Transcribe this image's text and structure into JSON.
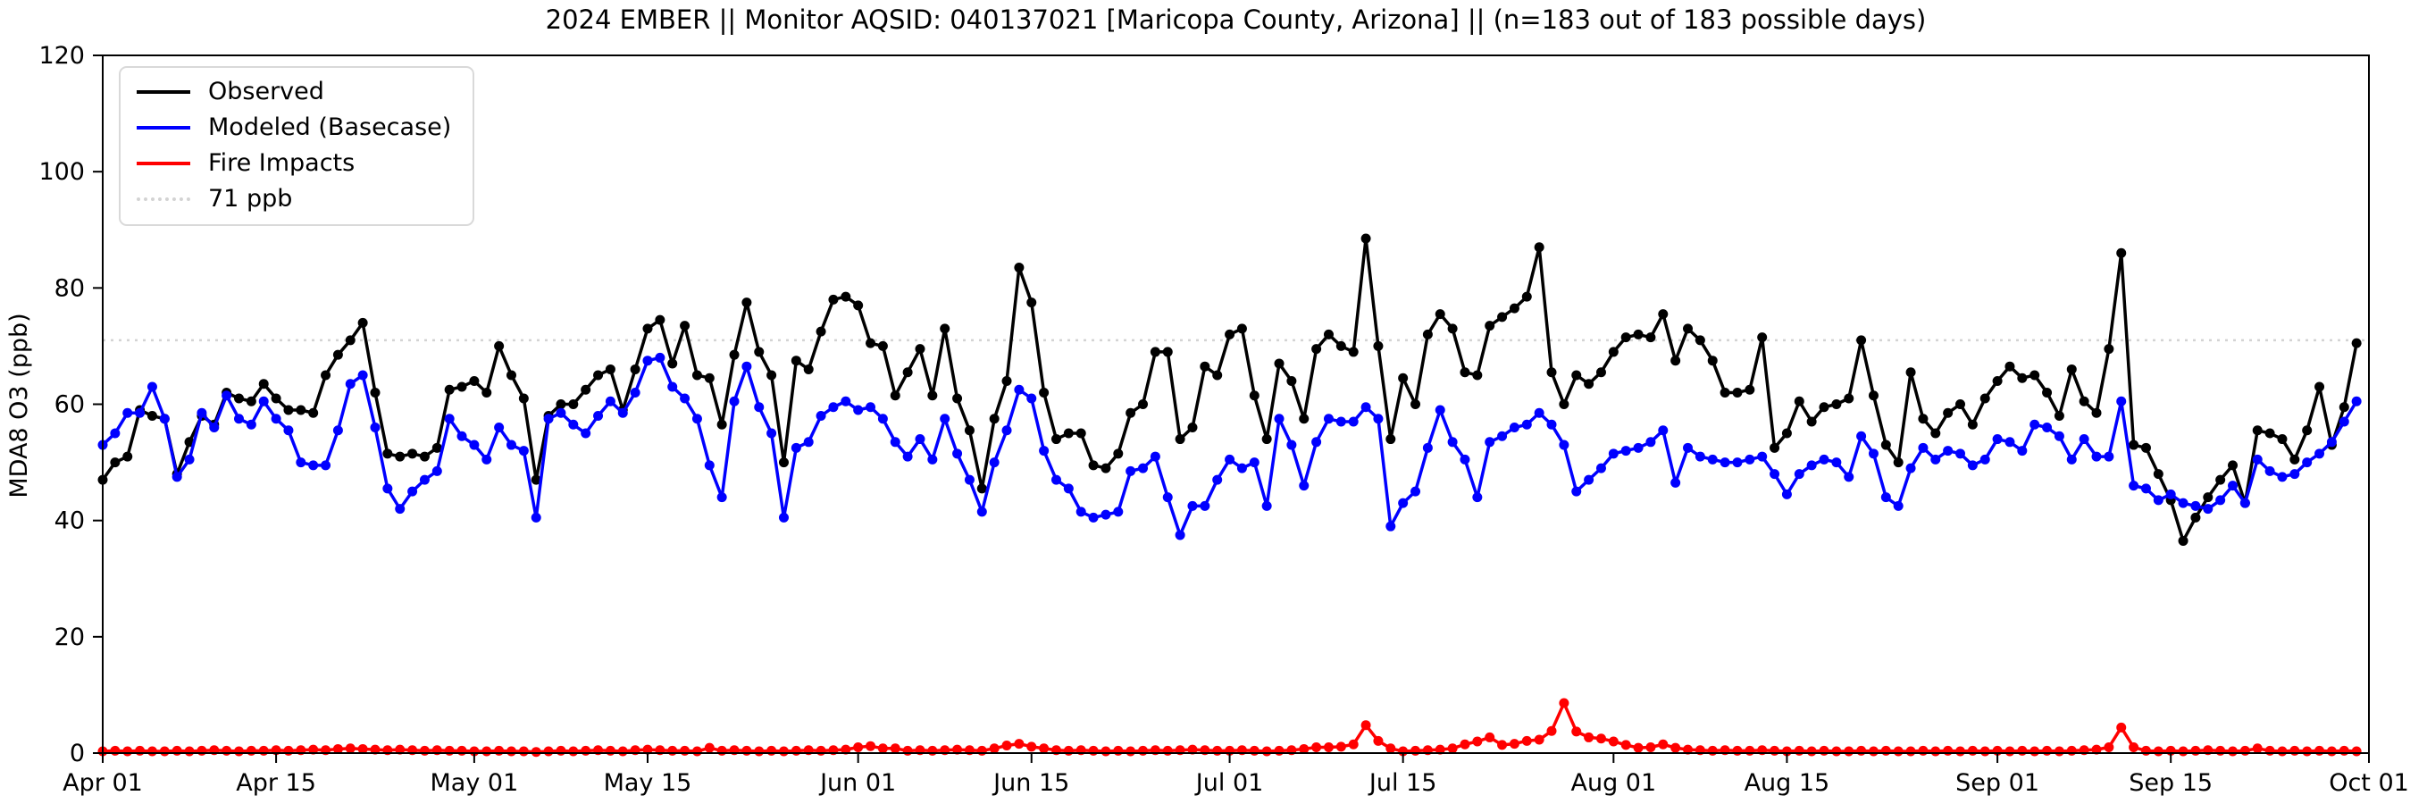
{
  "chart_data": {
    "type": "line",
    "title": "2024 EMBER || Monitor AQSID: 040137021 [Maricopa County, Arizona] || (n=183 out of 183 possible days)",
    "ylabel": "MDA8 O3 (ppb)",
    "ylim": [
      0,
      120
    ],
    "yticks": [
      0,
      20,
      40,
      60,
      80,
      100,
      120
    ],
    "grid": "off",
    "legend_position": "upper left",
    "n_days": 183,
    "x_start": "Apr 01",
    "x_end": "Oct 01",
    "xticks": [
      {
        "label": "Apr 01",
        "day": 0
      },
      {
        "label": "Apr 15",
        "day": 14
      },
      {
        "label": "May 01",
        "day": 30
      },
      {
        "label": "May 15",
        "day": 44
      },
      {
        "label": "Jun 01",
        "day": 61
      },
      {
        "label": "Jun 15",
        "day": 75
      },
      {
        "label": "Jul 01",
        "day": 91
      },
      {
        "label": "Jul 15",
        "day": 105
      },
      {
        "label": "Aug 01",
        "day": 122
      },
      {
        "label": "Aug 15",
        "day": 136
      },
      {
        "label": "Sep 01",
        "day": 153
      },
      {
        "label": "Sep 15",
        "day": 167
      },
      {
        "label": "Oct 01",
        "day": 183
      }
    ],
    "reference_line": {
      "label": "71 ppb",
      "value": 71,
      "color": "#d3d3d3",
      "style": "dotted"
    },
    "legend_items": [
      {
        "label": "Observed",
        "color": "#000000",
        "style": "solid"
      },
      {
        "label": "Modeled (Basecase)",
        "color": "#0000ff",
        "style": "solid"
      },
      {
        "label": "Fire Impacts",
        "color": "#ff0000",
        "style": "solid"
      },
      {
        "label": "71 ppb",
        "color": "#d3d3d3",
        "style": "dotted"
      }
    ],
    "series": [
      {
        "name": "Observed",
        "color": "#000000",
        "values": [
          47,
          50,
          51,
          59,
          58,
          57.5,
          48,
          53.5,
          58,
          56.5,
          62,
          61,
          60.5,
          63.5,
          61,
          59,
          59,
          58.5,
          65,
          68.5,
          71,
          74,
          62,
          51.5,
          51,
          51.5,
          51,
          52.5,
          62.5,
          63,
          64,
          62,
          70,
          65,
          61,
          47,
          58,
          60,
          60,
          62.5,
          65,
          66,
          59,
          66,
          73,
          74.5,
          67,
          73.5,
          65,
          64.5,
          56.5,
          68.5,
          77.5,
          69,
          65,
          50,
          67.5,
          66,
          72.5,
          78,
          78.5,
          77,
          70.5,
          70,
          61.5,
          65.5,
          69.5,
          61.5,
          73,
          61,
          55.5,
          45.5,
          57.5,
          64,
          83.5,
          77.5,
          62,
          54,
          55,
          55,
          49.5,
          49,
          51.5,
          58.5,
          60,
          69,
          69,
          54,
          56,
          66.5,
          65,
          72,
          73,
          61.5,
          54,
          67,
          64,
          57.5,
          69.5,
          72,
          70,
          69,
          88.5,
          70,
          54,
          64.5,
          60,
          72,
          75.5,
          73,
          65.5,
          65,
          73.5,
          75,
          76.5,
          78.5,
          87,
          65.5,
          60,
          65,
          63.5,
          65.5,
          69,
          71.5,
          72,
          71.5,
          75.5,
          67.5,
          73,
          71,
          67.5,
          62,
          62,
          62.5,
          71.5,
          52.5,
          55,
          60.5,
          57,
          59.5,
          60,
          61,
          71,
          61.5,
          53,
          50,
          65.5,
          57.5,
          55,
          58.5,
          60,
          56.5,
          61,
          64,
          66.5,
          64.5,
          65,
          62,
          58,
          66,
          60.5,
          58.5,
          69.5,
          86,
          53,
          52.5,
          48,
          43.5,
          36.5,
          40.5,
          44,
          47,
          49.5,
          43,
          55.5,
          55,
          54,
          50.5,
          55.5,
          63,
          53,
          59.5,
          70.5
        ]
      },
      {
        "name": "Modeled (Basecase)",
        "color": "#0000ff",
        "values": [
          53,
          55,
          58.5,
          58.5,
          63,
          57.5,
          47.5,
          50.5,
          58.5,
          56,
          61.5,
          57.5,
          56.5,
          60.5,
          57.5,
          55.5,
          50,
          49.5,
          49.5,
          55.5,
          63.5,
          65,
          56,
          45.5,
          42,
          45,
          47,
          48.5,
          57.5,
          54.5,
          53,
          50.5,
          56,
          53,
          52,
          40.5,
          57.5,
          58.5,
          56.5,
          55,
          58,
          60.5,
          58.5,
          62,
          67.5,
          68,
          63,
          61,
          57.5,
          49.5,
          44,
          60.5,
          66.5,
          59.5,
          55,
          40.5,
          52.5,
          53.5,
          58,
          59.5,
          60.5,
          59,
          59.5,
          57.5,
          53.5,
          51,
          54,
          50.5,
          57.5,
          51.5,
          47,
          41.5,
          50,
          55.5,
          62.5,
          61,
          52,
          47,
          45.5,
          41.5,
          40.5,
          41,
          41.5,
          48.5,
          49,
          51,
          44,
          37.5,
          42.5,
          42.5,
          47,
          50.5,
          49,
          50,
          42.5,
          57.5,
          53,
          46,
          53.5,
          57.5,
          57,
          57,
          59.5,
          57.5,
          39,
          43,
          45,
          52.5,
          59,
          53.5,
          50.5,
          44,
          53.5,
          54.5,
          56,
          56.5,
          58.5,
          56.5,
          53,
          45,
          47,
          49,
          51.5,
          52,
          52.5,
          53.5,
          55.5,
          46.5,
          52.5,
          51,
          50.5,
          50,
          50,
          50.5,
          51,
          48,
          44.5,
          48,
          49.5,
          50.5,
          50,
          47.5,
          54.5,
          51.5,
          44,
          42.5,
          49,
          52.5,
          50.5,
          52,
          51.5,
          49.5,
          50.5,
          54,
          53.5,
          52,
          56.5,
          56,
          54.5,
          50.5,
          54,
          51,
          51,
          60.5,
          46,
          45.5,
          43.5,
          44.5,
          43,
          42.5,
          42,
          43.5,
          46,
          43,
          50.5,
          48.5,
          47.5,
          48,
          50,
          51.5,
          53.5,
          57,
          60.5
        ]
      },
      {
        "name": "Fire Impacts",
        "color": "#ff0000",
        "values": [
          0.3,
          0.4,
          0.3,
          0.4,
          0.3,
          0.3,
          0.4,
          0.3,
          0.4,
          0.5,
          0.4,
          0.3,
          0.4,
          0.4,
          0.5,
          0.4,
          0.5,
          0.6,
          0.5,
          0.7,
          0.8,
          0.7,
          0.6,
          0.5,
          0.6,
          0.5,
          0.4,
          0.5,
          0.4,
          0.4,
          0.3,
          0.3,
          0.4,
          0.3,
          0.3,
          0.2,
          0.3,
          0.4,
          0.3,
          0.4,
          0.5,
          0.4,
          0.3,
          0.5,
          0.6,
          0.5,
          0.4,
          0.4,
          0.3,
          0.9,
          0.4,
          0.5,
          0.4,
          0.3,
          0.4,
          0.3,
          0.4,
          0.5,
          0.4,
          0.5,
          0.6,
          1.0,
          1.2,
          0.8,
          0.8,
          0.4,
          0.5,
          0.4,
          0.5,
          0.6,
          0.5,
          0.4,
          0.8,
          1.3,
          1.6,
          1.1,
          0.8,
          0.5,
          0.4,
          0.5,
          0.4,
          0.3,
          0.4,
          0.3,
          0.4,
          0.5,
          0.4,
          0.5,
          0.6,
          0.5,
          0.4,
          0.4,
          0.5,
          0.4,
          0.3,
          0.4,
          0.5,
          0.7,
          1.0,
          1.0,
          1.1,
          1.5,
          4.8,
          2.1,
          0.8,
          0.3,
          0.4,
          0.5,
          0.6,
          0.8,
          1.5,
          2.0,
          2.7,
          1.4,
          1.6,
          2.1,
          2.3,
          3.8,
          8.6,
          3.7,
          2.7,
          2.5,
          2.0,
          1.4,
          0.9,
          1.0,
          1.5,
          0.9,
          0.6,
          0.5,
          0.4,
          0.5,
          0.4,
          0.4,
          0.5,
          0.4,
          0.3,
          0.4,
          0.3,
          0.4,
          0.3,
          0.3,
          0.4,
          0.3,
          0.4,
          0.3,
          0.3,
          0.4,
          0.3,
          0.4,
          0.3,
          0.4,
          0.3,
          0.4,
          0.3,
          0.4,
          0.3,
          0.4,
          0.3,
          0.4,
          0.5,
          0.6,
          1.0,
          4.4,
          1.0,
          0.4,
          0.3,
          0.4,
          0.3,
          0.4,
          0.5,
          0.4,
          0.3,
          0.4,
          0.8,
          0.4,
          0.3,
          0.4,
          0.3,
          0.4,
          0.3,
          0.4,
          0.3
        ]
      }
    ]
  }
}
